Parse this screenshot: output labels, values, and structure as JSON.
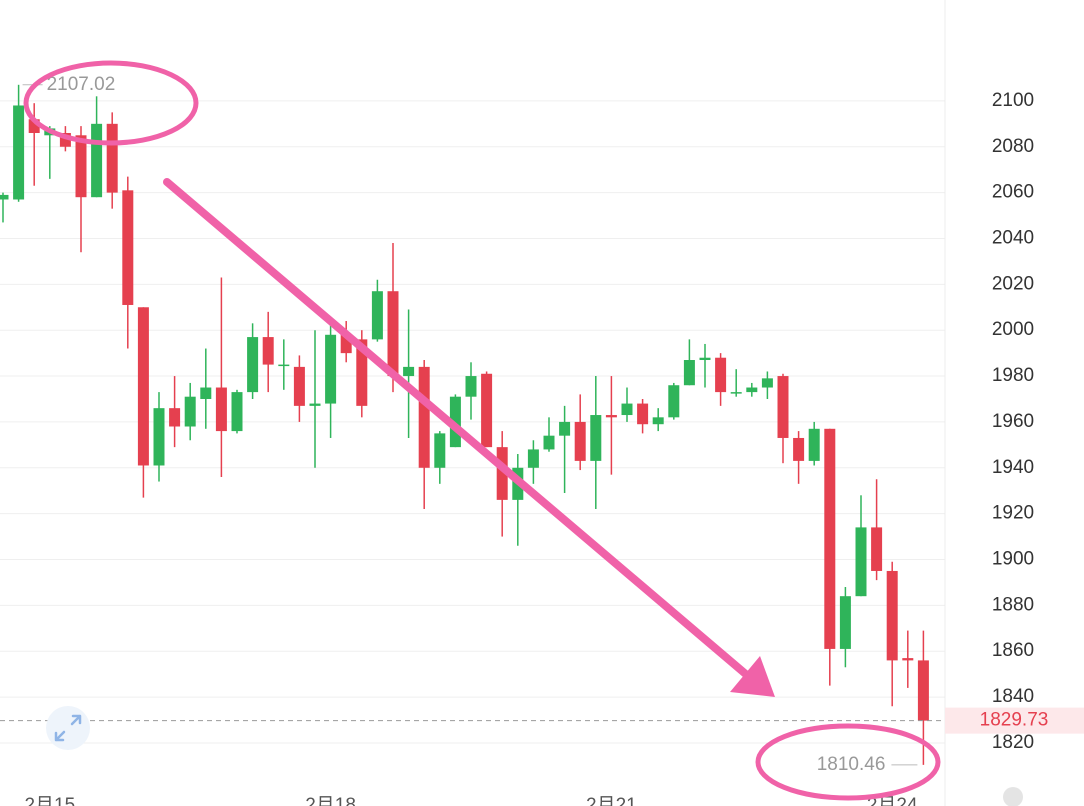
{
  "chart_data": {
    "type": "candlestick",
    "categories": [
      null,
      null,
      null,
      "2月15",
      null,
      null,
      null,
      null,
      null,
      null,
      null,
      null,
      null,
      null,
      null,
      null,
      null,
      null,
      null,
      null,
      null,
      "2月18",
      null,
      null,
      null,
      null,
      null,
      null,
      null,
      null,
      null,
      null,
      null,
      null,
      null,
      null,
      null,
      null,
      null,
      "2月21",
      null,
      null,
      null,
      null,
      null,
      null,
      null,
      null,
      null,
      null,
      null,
      null,
      null,
      null,
      null,
      null,
      null,
      "2月24",
      null,
      null
    ],
    "open": [
      2057,
      2057,
      2092,
      2085,
      2086,
      2085,
      2058,
      2090,
      2061,
      2010,
      1941,
      1966,
      1958,
      1970,
      1975,
      1956,
      1973,
      1997,
      1985,
      1984,
      1967,
      1968,
      1998,
      1996,
      1996,
      2017,
      1980,
      1984,
      1940,
      1949,
      1971,
      1981,
      1949,
      1926,
      1940,
      1948,
      1954,
      1960,
      1943,
      1963,
      1963,
      1968,
      1959,
      1962,
      1976,
      1987,
      1988,
      1972.5,
      1973,
      1975,
      1980,
      1953,
      1943,
      1957,
      1861,
      1884,
      1914,
      1895,
      1857,
      1856
    ],
    "high": [
      2060,
      2107.02,
      2099,
      2089,
      2089,
      2089,
      2102,
      2095,
      2067,
      2010,
      1973,
      1980,
      1977,
      1992,
      2023,
      1974,
      2003,
      2008,
      1996,
      1989,
      2000,
      2003,
      2004,
      2000,
      2022,
      2038,
      2009,
      1987,
      1956,
      1972,
      1986,
      1982,
      1956,
      1946,
      1952,
      1962,
      1967,
      1972,
      1980,
      1980,
      1975,
      1970,
      1966,
      1977,
      1996,
      1994,
      1990,
      1983,
      1977,
      1982,
      1981,
      1956,
      1960,
      1957,
      1888,
      1928,
      1935,
      1899,
      1869,
      1869
    ],
    "low": [
      2047,
      2056,
      2063,
      2066,
      2078,
      2034,
      2058,
      2053,
      1992,
      1927,
      1934,
      1949,
      1952,
      1957,
      1936,
      1955,
      1970,
      1973,
      1974,
      1960,
      1940,
      1953,
      1986,
      1962,
      1995,
      1973,
      1953,
      1922,
      1933,
      1949,
      1961,
      1949,
      1910,
      1906,
      1933,
      1947,
      1929,
      1939,
      1922,
      1937,
      1960,
      1955,
      1956,
      1961,
      1976,
      1975,
      1967,
      1971,
      1971,
      1970,
      1942,
      1933,
      1941,
      1845,
      1853,
      1884,
      1891,
      1836,
      1844,
      1810.46
    ],
    "close": [
      2059,
      2098,
      2086,
      2088,
      2080,
      2058,
      2090,
      2060,
      2011,
      1941,
      1966,
      1958,
      1971,
      1975,
      1956,
      1973,
      1997,
      1985,
      1985,
      1967,
      1968,
      1998,
      1990,
      1967,
      2017,
      1980,
      1984,
      1940,
      1955,
      1971,
      1980,
      1949,
      1926,
      1940,
      1948,
      1954,
      1960,
      1943,
      1963,
      1962,
      1968,
      1959,
      1962,
      1976,
      1987,
      1988,
      1973,
      1973,
      1975,
      1979,
      1953,
      1943,
      1957,
      1861,
      1884,
      1914,
      1895,
      1856,
      1856,
      1829.73
    ],
    "up_color": "#2fb45a",
    "down_color": "#e5404f",
    "ylim": [
      1792.5,
      2144
    ],
    "yticks": [
      1820,
      1840,
      1860,
      1880,
      1900,
      1920,
      1940,
      1960,
      1980,
      2000,
      2020,
      2040,
      2060,
      2080,
      2100
    ],
    "grid": true
  }
}
